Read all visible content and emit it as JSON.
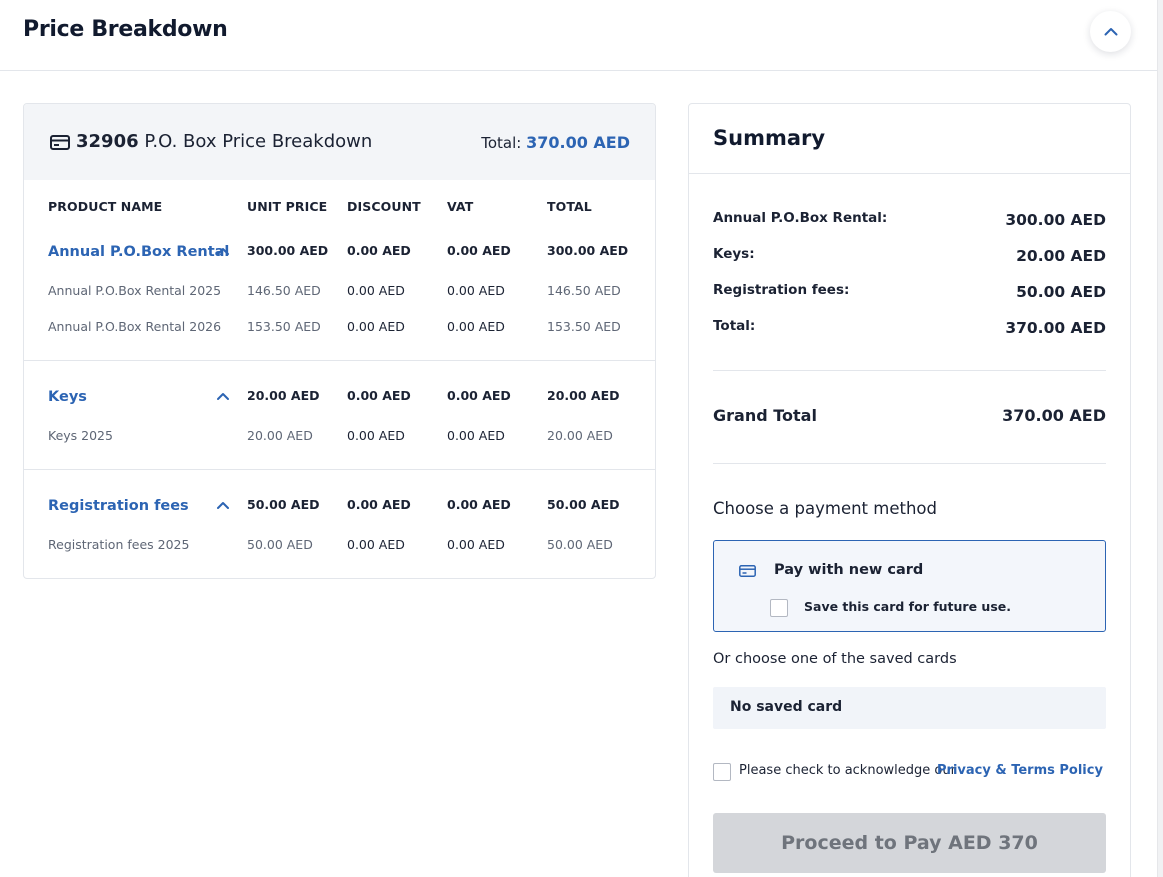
{
  "header": {
    "title": "Price Breakdown",
    "collapse_icon": "chevron-up-icon"
  },
  "breakdown": {
    "box_number": "32906",
    "title_suffix": "P.O. Box Price Breakdown",
    "total_label": "Total:",
    "total_value": "370.00 AED",
    "columns": [
      "PRODUCT NAME",
      "UNIT PRICE",
      "DISCOUNT",
      "VAT",
      "TOTAL"
    ],
    "groups": [
      {
        "name": "Annual P.O.Box Rental",
        "unit_price": "300.00 AED",
        "discount": "0.00 AED",
        "vat": "0.00 AED",
        "total": "300.00 AED",
        "items": [
          {
            "name": "Annual P.O.Box Rental 2025",
            "unit_price": "146.50 AED",
            "discount": "0.00 AED",
            "vat": "0.00 AED",
            "total": "146.50 AED"
          },
          {
            "name": "Annual P.O.Box Rental 2026",
            "unit_price": "153.50 AED",
            "discount": "0.00 AED",
            "vat": "0.00 AED",
            "total": "153.50 AED"
          }
        ]
      },
      {
        "name": "Keys",
        "unit_price": "20.00 AED",
        "discount": "0.00 AED",
        "vat": "0.00 AED",
        "total": "20.00 AED",
        "items": [
          {
            "name": "Keys 2025",
            "unit_price": "20.00 AED",
            "discount": "0.00 AED",
            "vat": "0.00 AED",
            "total": "20.00 AED"
          }
        ]
      },
      {
        "name": "Registration fees",
        "unit_price": "50.00 AED",
        "discount": "0.00 AED",
        "vat": "0.00 AED",
        "total": "50.00 AED",
        "items": [
          {
            "name": "Registration fees 2025",
            "unit_price": "50.00 AED",
            "discount": "0.00 AED",
            "vat": "0.00 AED",
            "total": "50.00 AED"
          }
        ]
      }
    ]
  },
  "summary": {
    "title": "Summary",
    "rows": [
      {
        "label": "Annual P.O.Box Rental:",
        "value": "300.00 AED"
      },
      {
        "label": "Keys:",
        "value": "20.00 AED"
      },
      {
        "label": "Registration fees:",
        "value": "50.00 AED"
      },
      {
        "label": "Total:",
        "value": "370.00 AED"
      }
    ],
    "grand_total_label": "Grand Total",
    "grand_total_value": "370.00 AED",
    "payment_title": "Choose a payment method",
    "new_card_label": "Pay with new card",
    "save_card_label": "Save this card for future use.",
    "saved_cards_title": "Or choose one of the saved cards",
    "no_saved_card": "No saved card",
    "ack_text": "Please check to acknowledge our",
    "ack_link": "Privacy & Terms Policy",
    "proceed_label": "Proceed to Pay AED 370"
  },
  "colors": {
    "accent": "#2c64b3",
    "text": "#1b2233",
    "muted": "#5e6675",
    "button_disabled": "#d4d6da"
  }
}
